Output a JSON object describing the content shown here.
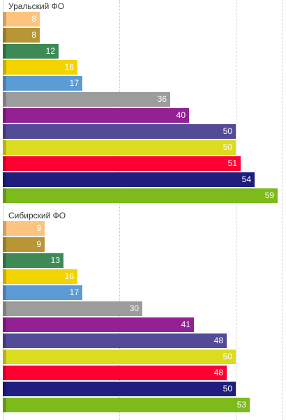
{
  "chart_data": [
    {
      "type": "bar",
      "orientation": "horizontal",
      "title": "Уральский ФО",
      "grid": true,
      "xlim": [
        0,
        60
      ],
      "series": [
        {
          "value": 8,
          "label": "8",
          "color": "#fdc47f"
        },
        {
          "value": 8,
          "label": "8",
          "color": "#b89635"
        },
        {
          "value": 12,
          "label": "12",
          "color": "#3e8a56"
        },
        {
          "value": 16,
          "label": "16",
          "color": "#f4d400"
        },
        {
          "value": 17,
          "label": "17",
          "color": "#5b9bd6"
        },
        {
          "value": 36,
          "label": "36",
          "color": "#9c9c9c"
        },
        {
          "value": 40,
          "label": "40",
          "color": "#942193"
        },
        {
          "value": 50,
          "label": "50",
          "color": "#534b98"
        },
        {
          "value": 50,
          "label": "50",
          "color": "#dcdc1f"
        },
        {
          "value": 51,
          "label": "51",
          "color": "#ff0033"
        },
        {
          "value": 54,
          "label": "54",
          "color": "#1f1e7f"
        },
        {
          "value": 59,
          "label": "59",
          "color": "#7dbb1c"
        }
      ]
    },
    {
      "type": "bar",
      "orientation": "horizontal",
      "title": "Сибирский ФО",
      "grid": true,
      "xlim": [
        0,
        60
      ],
      "series": [
        {
          "value": 9,
          "label": "9",
          "color": "#fdc47f"
        },
        {
          "value": 9,
          "label": "9",
          "color": "#b89635"
        },
        {
          "value": 13,
          "label": "13",
          "color": "#3e8a56"
        },
        {
          "value": 16,
          "label": "16",
          "color": "#f4d400"
        },
        {
          "value": 17,
          "label": "17",
          "color": "#5b9bd6"
        },
        {
          "value": 30,
          "label": "30",
          "color": "#9c9c9c"
        },
        {
          "value": 41,
          "label": "41",
          "color": "#942193"
        },
        {
          "value": 48,
          "label": "48",
          "color": "#534b98"
        },
        {
          "value": 50,
          "label": "50",
          "color": "#dcdc1f"
        },
        {
          "value": 48,
          "label": "48",
          "color": "#ff0033"
        },
        {
          "value": 50,
          "label": "50",
          "color": "#1f1e7f"
        },
        {
          "value": 53,
          "label": "53",
          "color": "#7dbb1c"
        }
      ]
    }
  ]
}
